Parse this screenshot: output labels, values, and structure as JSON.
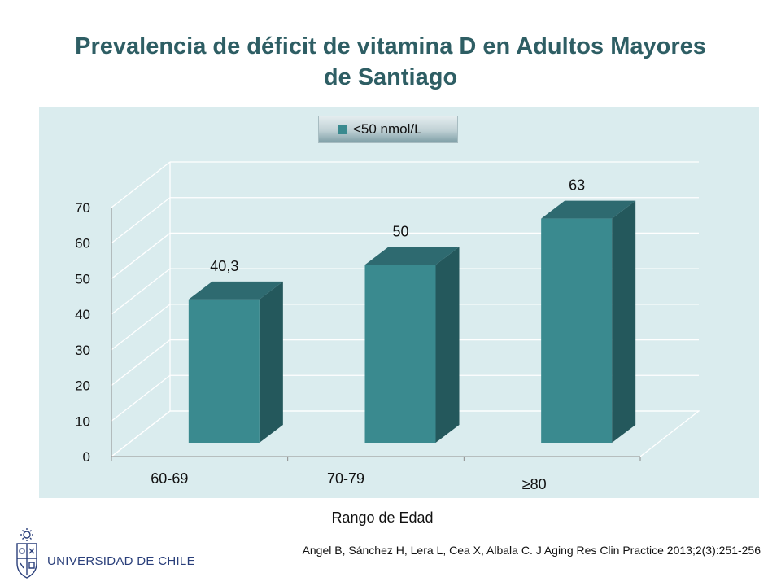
{
  "slide": {
    "title_line1": "Prevalencia de déficit de vitamina D  en Adultos Mayores",
    "title_line2": "de Santiago",
    "university": "UNIVERSIDAD DE CHILE",
    "citation": "Angel B, Sánchez H, Lera L,  Cea X, Albala C. J Aging Res Clin Practice 2013;2(3):251-256"
  },
  "colors": {
    "title": "#2E5E64",
    "panel_bg": "#DAECEE",
    "bar_front": "#3A8A8F",
    "bar_top": "#2E6A70",
    "bar_side": "#24585C",
    "grid": "#ffffff",
    "logo": "#2A3F7A"
  },
  "chart_data": {
    "type": "bar",
    "title": "Prevalencia de déficit de vitamina D  en Adultos Mayores de Santiago",
    "xlabel": "Rango de Edad",
    "ylabel": "",
    "categories": [
      "60-69",
      "70-79",
      "≥80"
    ],
    "series": [
      {
        "name": "<50 nmol/L",
        "values": [
          40.3,
          50,
          63
        ],
        "labels": [
          "40,3",
          "50",
          "63"
        ]
      }
    ],
    "ylim": [
      0,
      70
    ],
    "yticks": [
      0,
      10,
      20,
      30,
      40,
      50,
      60,
      70
    ],
    "grid": true,
    "legend": "top-center",
    "style": "3d-column"
  }
}
